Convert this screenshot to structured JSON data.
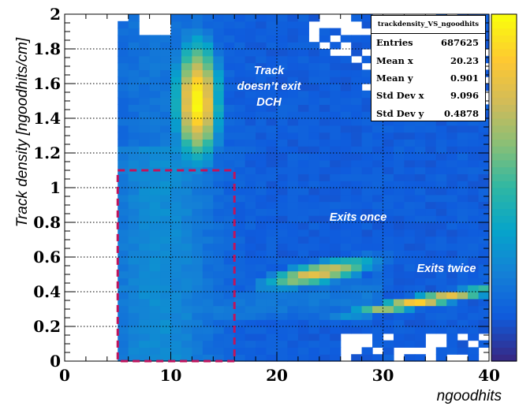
{
  "chart_data": {
    "type": "heatmap",
    "title": "",
    "xlabel": "ngoodhits",
    "ylabel": "Track density [ngoodhits/cm]",
    "xlim": [
      0,
      40
    ],
    "ylim": [
      0,
      2
    ],
    "x_ticks": [
      "0",
      "10",
      "20",
      "30",
      "40"
    ],
    "y_ticks": [
      "0",
      "0.2",
      "0.4",
      "0.6",
      "0.8",
      "1",
      "1.2",
      "1.4",
      "1.6",
      "1.8",
      "2"
    ],
    "grid": true,
    "colormap": "parula",
    "colors": [
      "#352a87",
      "#0f5cdd",
      "#1481d6",
      "#06a4ca",
      "#2eb7a4",
      "#87bf77",
      "#d1bb59",
      "#fec832",
      "#f9fb0e"
    ],
    "stats_box": {
      "name": "trackdensity_VS_ngoodhits",
      "rows": [
        {
          "label": "Entries",
          "value": "687625"
        },
        {
          "label": "Mean x",
          "value": "20.23"
        },
        {
          "label": "Mean y",
          "value": "0.901"
        },
        {
          "label": "Std Dev x",
          "value": "9.096"
        },
        {
          "label": "Std Dev y",
          "value": "0.4878"
        }
      ]
    },
    "annotations": [
      {
        "text": "Track doesn't exit DCH",
        "x": 19.3,
        "y": 1.47
      },
      {
        "text": "Exits once",
        "x": 28,
        "y": 0.83
      },
      {
        "text": "Exits twice",
        "x": 36.5,
        "y": 0.53
      }
    ],
    "highlight_box": {
      "x": [
        5,
        16
      ],
      "y": [
        0,
        1.1
      ],
      "color": "#c0145c"
    },
    "clusters": [
      {
        "x": 12.5,
        "y": 1.5,
        "sx": 1.5,
        "sy": 0.25,
        "peak": 1.0,
        "slope": 0
      },
      {
        "x": 24,
        "y": 0.51,
        "sx": 3.8,
        "sy": 0.045,
        "peak": 0.82,
        "slope": 0.012
      },
      {
        "x": 34,
        "y": 0.35,
        "sx": 5.5,
        "sy": 0.025,
        "peak": 0.9,
        "slope": 0.0105
      }
    ]
  },
  "annotations_text": {
    "top": [
      "Track",
      "doesn’t exit",
      "DCH"
    ],
    "once": "Exits once",
    "twice": "Exits twice"
  },
  "stats_title": "trackdensity_VS_ngoodhits"
}
